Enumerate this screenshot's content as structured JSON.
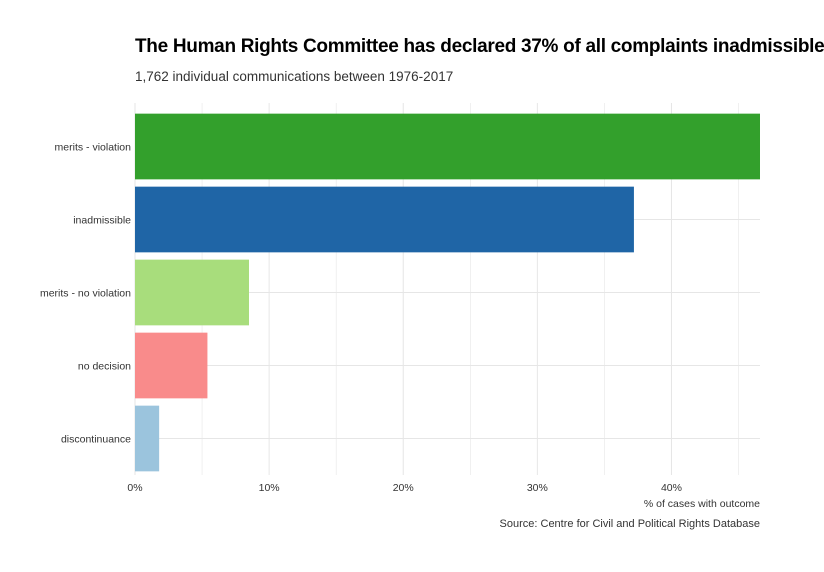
{
  "chart_data": {
    "type": "bar",
    "orientation": "horizontal",
    "title": "The Human Rights Committee has declared 37% of all complaints inadmissible",
    "subtitle": "1,762 individual communications between 1976-2017",
    "xlabel": "% of cases with outcome",
    "ylabel": "",
    "caption": "Source: Centre for Civil and Political Rights Database",
    "categories": [
      "merits - violation",
      "inadmissible",
      "merits - no violation",
      "no decision",
      "discontinuance"
    ],
    "values": [
      46.6,
      37.2,
      8.5,
      5.4,
      1.8
    ],
    "colors": [
      "#33a02c",
      "#1f65a6",
      "#a8dd7c",
      "#f98b8b",
      "#9bc4dd"
    ],
    "xticks": [
      0,
      10,
      20,
      30,
      40
    ],
    "xtick_labels": [
      "0%",
      "10%",
      "20%",
      "30%",
      "40%"
    ],
    "xlim": [
      0,
      46.6
    ],
    "grid": true,
    "legend": "none"
  }
}
